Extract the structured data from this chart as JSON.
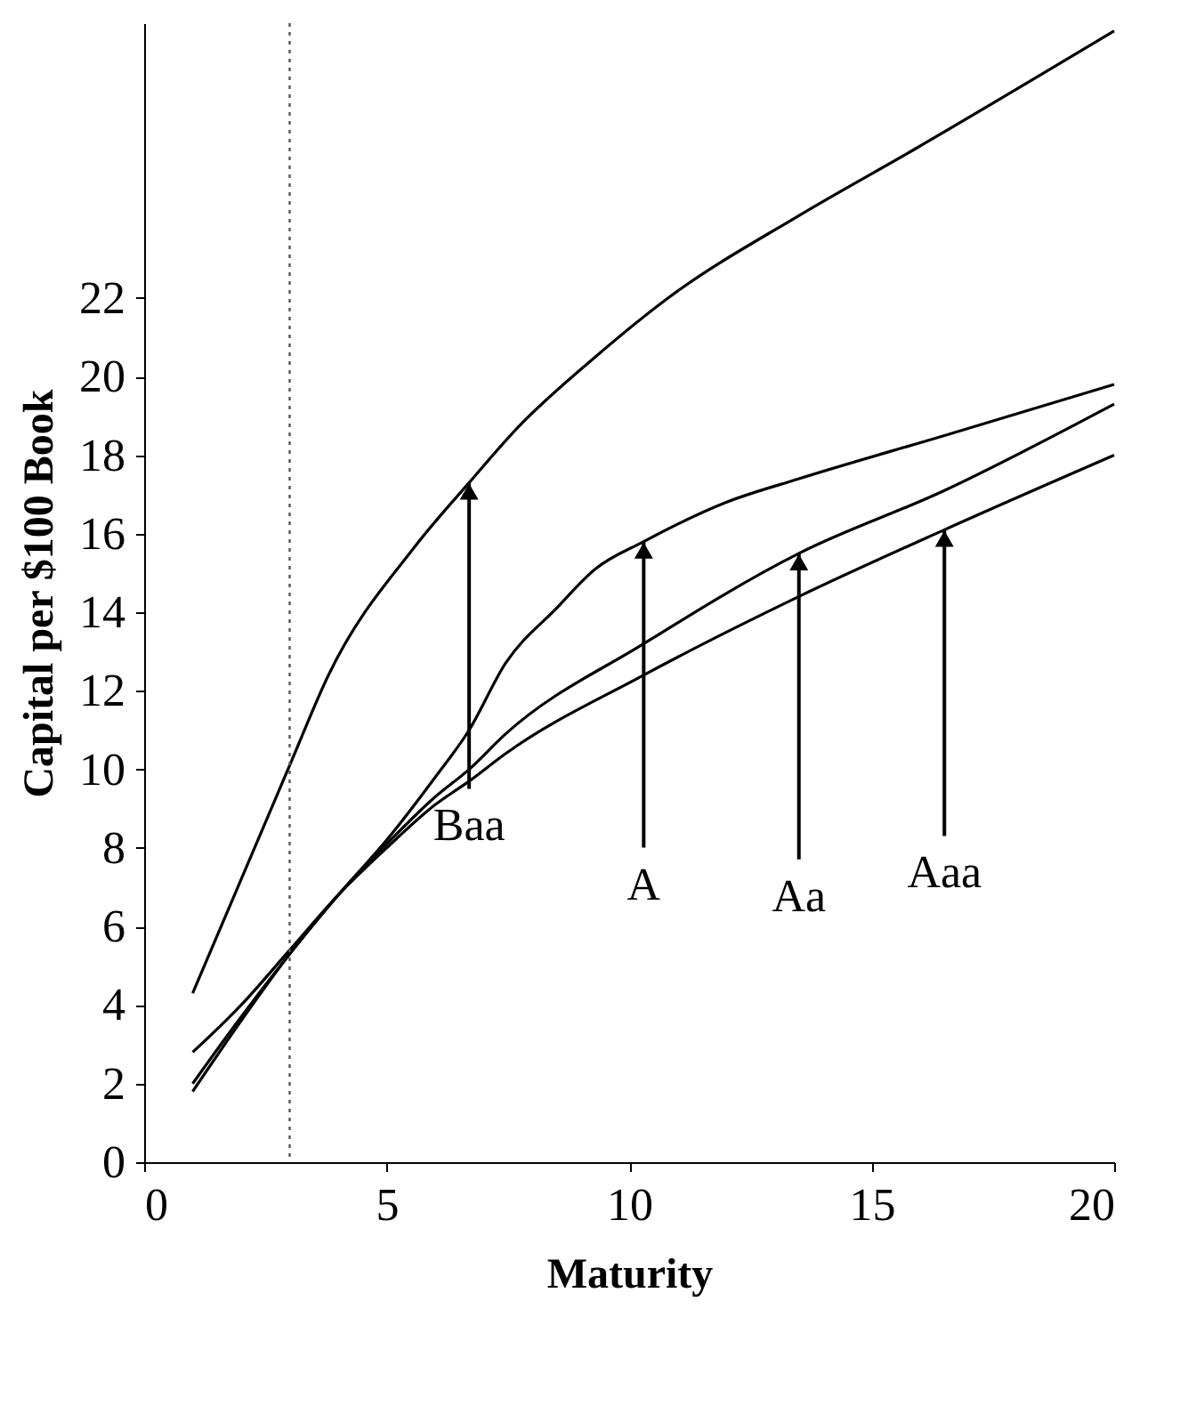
{
  "chart_data": {
    "type": "line",
    "xlabel": "Maturity",
    "ylabel": "Capital per $100 Book",
    "xlim": [
      0,
      20
    ],
    "ylim": [
      0,
      29
    ],
    "xticks": [
      0,
      5,
      10,
      15,
      20
    ],
    "yticks": [
      0,
      2,
      4,
      6,
      8,
      10,
      12,
      14,
      16,
      18,
      20,
      22
    ],
    "line_style": "solid",
    "series": [
      {
        "color": "#000000",
        "x": [
          1,
          2,
          3,
          3.8,
          5.6,
          6.7,
          7.7,
          9.3,
          10.8,
          13.5,
          15.9,
          20
        ],
        "values": [
          4.3,
          7.2,
          10.1,
          12.4,
          15.7,
          17.3,
          18.7,
          20.5,
          22.0,
          24.1,
          25.8,
          28.8
        ]
      },
      {
        "color": "#000000",
        "x": [
          1,
          2,
          3,
          4,
          5,
          6,
          6.7,
          7.45,
          8.5,
          9.3,
          10.3,
          12,
          13.5,
          16.5,
          20
        ],
        "values": [
          1.8,
          3.6,
          5.3,
          6.8,
          8.2,
          9.8,
          11.0,
          12.7,
          14.1,
          15.1,
          15.8,
          16.8,
          17.4,
          18.5,
          19.8
        ]
      },
      {
        "color": "#000000",
        "x": [
          1,
          2,
          3,
          4,
          5,
          6,
          6.7,
          7.45,
          10.3,
          13.5,
          16.5,
          20
        ],
        "values": [
          2.0,
          3.7,
          5.3,
          6.8,
          8.1,
          9.3,
          10.0,
          10.9,
          13.2,
          15.5,
          17.1,
          19.3
        ]
      },
      {
        "color": "#000000",
        "x": [
          1,
          2,
          3,
          4,
          5,
          6,
          6.7,
          7.45,
          10.3,
          13.5,
          16.5,
          20
        ],
        "values": [
          2.8,
          4.0,
          5.4,
          6.8,
          8.0,
          9.1,
          9.7,
          10.4,
          12.4,
          14.4,
          16.1,
          18.0
        ]
      }
    ],
    "ref_lines": [
      {
        "axis": "x",
        "value": 3,
        "color": "#555555",
        "line_style": "dotted"
      }
    ],
    "annotations": [
      {
        "text": "Baa",
        "x": 6.7,
        "y": 17.3
      },
      {
        "text": "A",
        "x": 10.3,
        "y": 15.8
      },
      {
        "text": "Aa",
        "x": 13.5,
        "y": 15.5
      },
      {
        "text": "Aaa",
        "x": 16.5,
        "y": 16.1
      }
    ]
  }
}
